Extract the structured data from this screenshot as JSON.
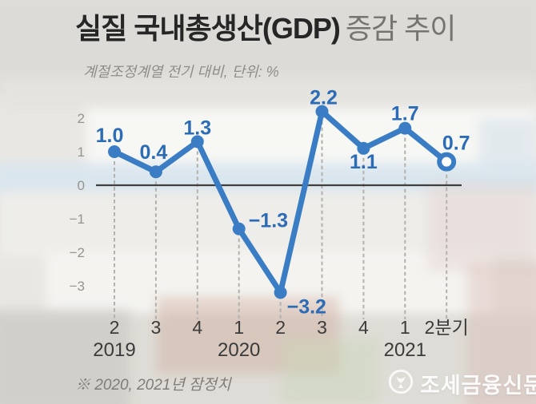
{
  "title": {
    "main": "실질 국내총생산(GDP)",
    "suffix": "증감 추이"
  },
  "subtitle": "계절조정계열 전기 대비, 단위: %",
  "footnote": "※ 2020, 2021년 잠정치",
  "watermark": {
    "publisher": "조세금융신문",
    "logo": "publisher-logo-icon"
  },
  "colors": {
    "line": "#3b7dc4",
    "point": "#3b7dc4",
    "value_label": "#2c6cb6",
    "zero_axis": "#3f3f3f",
    "dashed_guide": "#b3b1ad",
    "y_tick": "#95948f",
    "x_tick": "#3b3b3b",
    "highlight_fill": "#ffffff"
  },
  "chart_data": {
    "type": "line",
    "title": "실질 국내총생산(GDP) 증감 추이",
    "note": "계절조정계열 전기 대비",
    "unit": "%",
    "categories": [
      "2019 2분기",
      "2019 3분기",
      "2019 4분기",
      "2020 1분기",
      "2020 2분기",
      "2020 3분기",
      "2020 4분기",
      "2021 1분기",
      "2021 2분기"
    ],
    "x_tick_labels": [
      "2",
      "3",
      "4",
      "1",
      "2",
      "3",
      "4",
      "1",
      "2분기"
    ],
    "year_labels": [
      {
        "label": "2019",
        "index": 0
      },
      {
        "label": "2020",
        "index": 3
      },
      {
        "label": "2021",
        "index": 7
      }
    ],
    "values": [
      1.0,
      0.4,
      1.3,
      -1.3,
      -3.2,
      2.2,
      1.1,
      1.7,
      0.7
    ],
    "yticks": [
      2,
      1,
      0,
      -1,
      -2,
      -3
    ],
    "ylim": [
      -3.6,
      2.6
    ],
    "grid": false,
    "legend": false,
    "last_point_style": "open-circle"
  }
}
